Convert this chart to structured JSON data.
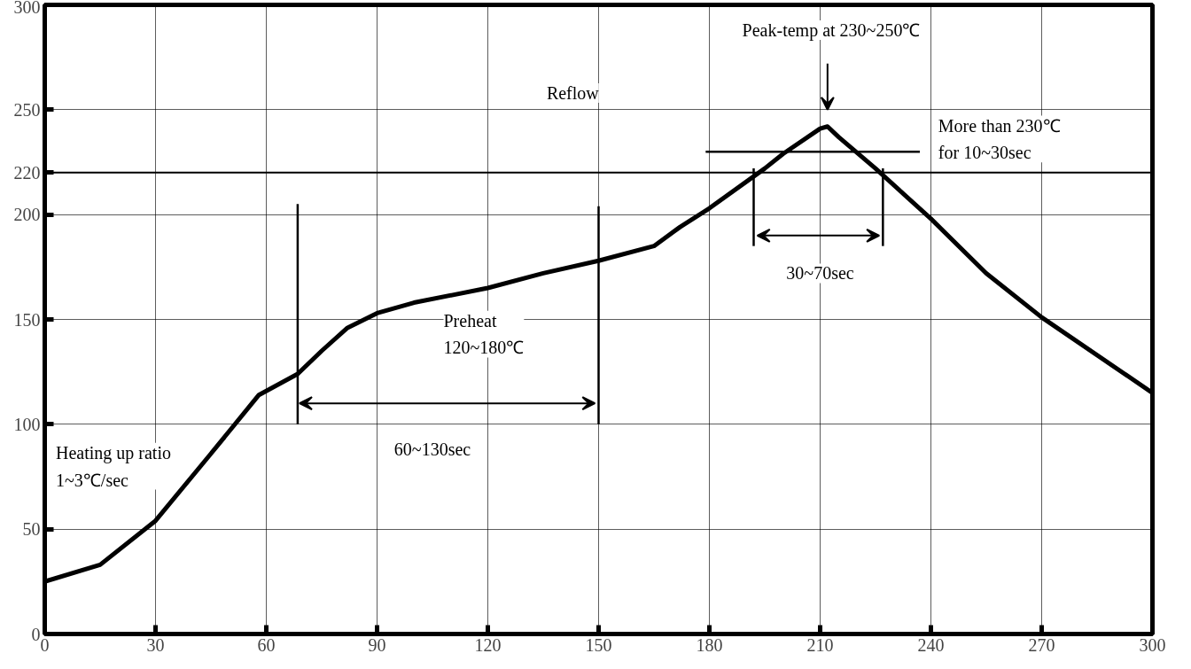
{
  "chart_data": {
    "type": "line",
    "xlim": [
      0,
      300
    ],
    "ylim": [
      0,
      300
    ],
    "xticks": [
      0,
      30,
      60,
      90,
      120,
      150,
      180,
      210,
      240,
      270,
      300
    ],
    "yticks": [
      0,
      50,
      100,
      150,
      200,
      220,
      250,
      300
    ],
    "grid": true,
    "line_style": "solid",
    "marker": "none",
    "ref_lines": [
      {
        "axis": "y",
        "value": 220,
        "label": null,
        "color": "#000000"
      }
    ],
    "series": [
      {
        "color": "#000000",
        "x": [
          0,
          15,
          30,
          45,
          58,
          68.5,
          75,
          82,
          90,
          100,
          120,
          135,
          150,
          165,
          172,
          180,
          195,
          200,
          210,
          212,
          215,
          225,
          240,
          255,
          270,
          300
        ],
        "values": [
          25,
          33,
          54,
          86,
          114,
          124,
          135,
          146,
          153,
          158,
          165,
          172,
          178,
          185,
          194,
          203,
          222,
          229,
          241,
          242,
          237,
          222,
          198,
          172,
          151,
          115
        ]
      },
      {
        "color": "#000000",
        "x": [
          68.5,
          68.5
        ],
        "values": [
          100,
          205
        ]
      },
      {
        "color": "#000000",
        "x": [
          150,
          150
        ],
        "values": [
          100,
          204
        ]
      },
      {
        "color": "#000000",
        "x": [
          192,
          192
        ],
        "values": [
          185,
          222
        ]
      },
      {
        "color": "#000000",
        "x": [
          227,
          227
        ],
        "values": [
          185,
          222
        ]
      },
      {
        "color": "#000000",
        "x": [
          179,
          237
        ],
        "values": [
          230,
          230
        ]
      }
    ],
    "annotations": [
      "Peak-temp at 230~250℃",
      "Reflow",
      "More than 230℃\nfor 10~30sec",
      "30~70sec",
      "Preheat\n120~180℃",
      "60~130sec",
      "Heating up ratio\n1~3℃/sec"
    ]
  }
}
